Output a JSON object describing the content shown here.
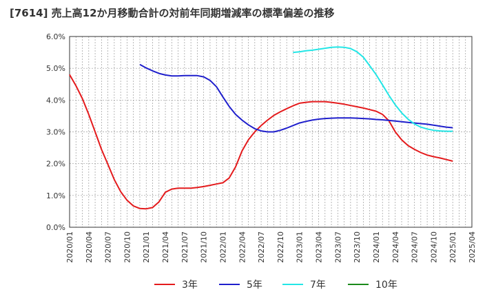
{
  "chart_data": {
    "type": "line",
    "title": "[7614]  売上高12か月移動合計の対前年同期増減率の標準偏差の推移",
    "y_ticks": [
      "0.0%",
      "1.0%",
      "2.0%",
      "3.0%",
      "4.0%",
      "5.0%",
      "6.0%"
    ],
    "ylim": [
      0,
      6
    ],
    "x_ticks": [
      "2020/01",
      "2020/04",
      "2020/07",
      "2020/10",
      "2021/01",
      "2021/04",
      "2021/07",
      "2021/10",
      "2022/01",
      "2022/04",
      "2022/07",
      "2022/10",
      "2023/01",
      "2023/04",
      "2023/07",
      "2023/10",
      "2024/01",
      "2024/04",
      "2024/07",
      "2024/10",
      "2025/01",
      "2025/04"
    ],
    "xlim": [
      "2020/01",
      "2025/04"
    ],
    "grid": true,
    "legend_position": "bottom",
    "series": [
      {
        "name": "3年",
        "color": "#e41a1c",
        "points": [
          [
            "2020/01",
            4.8
          ],
          [
            "2020/02",
            4.45
          ],
          [
            "2020/03",
            4.05
          ],
          [
            "2020/04",
            3.55
          ],
          [
            "2020/05",
            3.0
          ],
          [
            "2020/06",
            2.45
          ],
          [
            "2020/07",
            1.98
          ],
          [
            "2020/08",
            1.5
          ],
          [
            "2020/09",
            1.12
          ],
          [
            "2020/10",
            0.85
          ],
          [
            "2020/11",
            0.67
          ],
          [
            "2020/12",
            0.59
          ],
          [
            "2021/01",
            0.58
          ],
          [
            "2021/02",
            0.62
          ],
          [
            "2021/03",
            0.8
          ],
          [
            "2021/04",
            1.1
          ],
          [
            "2021/05",
            1.2
          ],
          [
            "2021/06",
            1.23
          ],
          [
            "2021/07",
            1.23
          ],
          [
            "2021/08",
            1.23
          ],
          [
            "2021/09",
            1.25
          ],
          [
            "2021/10",
            1.28
          ],
          [
            "2021/11",
            1.32
          ],
          [
            "2021/12",
            1.36
          ],
          [
            "2022/01",
            1.4
          ],
          [
            "2022/02",
            1.55
          ],
          [
            "2022/03",
            1.9
          ],
          [
            "2022/04",
            2.4
          ],
          [
            "2022/05",
            2.75
          ],
          [
            "2022/06",
            3.0
          ],
          [
            "2022/07",
            3.2
          ],
          [
            "2022/08",
            3.37
          ],
          [
            "2022/09",
            3.52
          ],
          [
            "2022/10",
            3.63
          ],
          [
            "2022/11",
            3.73
          ],
          [
            "2022/12",
            3.82
          ],
          [
            "2023/01",
            3.9
          ],
          [
            "2023/02",
            3.93
          ],
          [
            "2023/03",
            3.95
          ],
          [
            "2023/04",
            3.95
          ],
          [
            "2023/05",
            3.95
          ],
          [
            "2023/06",
            3.93
          ],
          [
            "2023/07",
            3.9
          ],
          [
            "2023/08",
            3.87
          ],
          [
            "2023/09",
            3.83
          ],
          [
            "2023/10",
            3.79
          ],
          [
            "2023/11",
            3.75
          ],
          [
            "2023/12",
            3.7
          ],
          [
            "2024/01",
            3.65
          ],
          [
            "2024/02",
            3.55
          ],
          [
            "2024/03",
            3.35
          ],
          [
            "2024/04",
            3.0
          ],
          [
            "2024/05",
            2.75
          ],
          [
            "2024/06",
            2.57
          ],
          [
            "2024/07",
            2.45
          ],
          [
            "2024/08",
            2.35
          ],
          [
            "2024/09",
            2.27
          ],
          [
            "2024/10",
            2.22
          ],
          [
            "2024/11",
            2.18
          ],
          [
            "2024/12",
            2.13
          ],
          [
            "2025/01",
            2.08
          ]
        ]
      },
      {
        "name": "5年",
        "color": "#1f1fcc",
        "points": [
          [
            "2020/12",
            5.12
          ],
          [
            "2021/01",
            5.01
          ],
          [
            "2021/02",
            4.92
          ],
          [
            "2021/03",
            4.84
          ],
          [
            "2021/04",
            4.79
          ],
          [
            "2021/05",
            4.76
          ],
          [
            "2021/06",
            4.76
          ],
          [
            "2021/07",
            4.77
          ],
          [
            "2021/08",
            4.77
          ],
          [
            "2021/09",
            4.77
          ],
          [
            "2021/10",
            4.73
          ],
          [
            "2021/11",
            4.62
          ],
          [
            "2021/12",
            4.42
          ],
          [
            "2022/01",
            4.1
          ],
          [
            "2022/02",
            3.8
          ],
          [
            "2022/03",
            3.55
          ],
          [
            "2022/04",
            3.37
          ],
          [
            "2022/05",
            3.22
          ],
          [
            "2022/06",
            3.1
          ],
          [
            "2022/07",
            3.03
          ],
          [
            "2022/08",
            3.0
          ],
          [
            "2022/09",
            3.0
          ],
          [
            "2022/10",
            3.05
          ],
          [
            "2022/11",
            3.12
          ],
          [
            "2022/12",
            3.2
          ],
          [
            "2023/01",
            3.28
          ],
          [
            "2023/02",
            3.33
          ],
          [
            "2023/03",
            3.37
          ],
          [
            "2023/04",
            3.4
          ],
          [
            "2023/05",
            3.42
          ],
          [
            "2023/06",
            3.43
          ],
          [
            "2023/07",
            3.44
          ],
          [
            "2023/08",
            3.44
          ],
          [
            "2023/09",
            3.44
          ],
          [
            "2023/10",
            3.43
          ],
          [
            "2023/11",
            3.42
          ],
          [
            "2023/12",
            3.41
          ],
          [
            "2024/01",
            3.39
          ],
          [
            "2024/02",
            3.38
          ],
          [
            "2024/03",
            3.36
          ],
          [
            "2024/04",
            3.34
          ],
          [
            "2024/05",
            3.32
          ],
          [
            "2024/06",
            3.3
          ],
          [
            "2024/07",
            3.28
          ],
          [
            "2024/08",
            3.26
          ],
          [
            "2024/09",
            3.24
          ],
          [
            "2024/10",
            3.21
          ],
          [
            "2024/11",
            3.18
          ],
          [
            "2024/12",
            3.15
          ],
          [
            "2025/01",
            3.13
          ]
        ]
      },
      {
        "name": "7年",
        "color": "#22e6e6",
        "points": [
          [
            "2022/12",
            5.5
          ],
          [
            "2023/01",
            5.52
          ],
          [
            "2023/02",
            5.55
          ],
          [
            "2023/03",
            5.57
          ],
          [
            "2023/04",
            5.6
          ],
          [
            "2023/05",
            5.63
          ],
          [
            "2023/06",
            5.66
          ],
          [
            "2023/07",
            5.67
          ],
          [
            "2023/08",
            5.66
          ],
          [
            "2023/09",
            5.62
          ],
          [
            "2023/10",
            5.52
          ],
          [
            "2023/11",
            5.35
          ],
          [
            "2023/12",
            5.08
          ],
          [
            "2024/01",
            4.8
          ],
          [
            "2024/02",
            4.48
          ],
          [
            "2024/03",
            4.15
          ],
          [
            "2024/04",
            3.85
          ],
          [
            "2024/05",
            3.6
          ],
          [
            "2024/06",
            3.4
          ],
          [
            "2024/07",
            3.25
          ],
          [
            "2024/08",
            3.15
          ],
          [
            "2024/09",
            3.09
          ],
          [
            "2024/10",
            3.05
          ],
          [
            "2024/11",
            3.03
          ],
          [
            "2024/12",
            3.02
          ],
          [
            "2025/01",
            3.02
          ]
        ]
      },
      {
        "name": "10年",
        "color": "#1a8a1a",
        "points": []
      }
    ]
  }
}
